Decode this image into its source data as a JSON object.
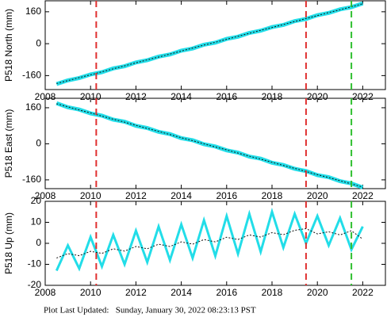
{
  "chart_data": [
    {
      "type": "line",
      "ylabel": "P518 North (mm)",
      "x": [
        2008.5,
        2009,
        2009.5,
        2010,
        2010.5,
        2011,
        2011.5,
        2012,
        2012.5,
        2013,
        2013.5,
        2014,
        2014.5,
        2015,
        2015.5,
        2016,
        2016.5,
        2017,
        2017.5,
        2018,
        2018.5,
        2019,
        2019.5,
        2020,
        2020.5,
        2021,
        2021.5,
        2022
      ],
      "series": [
        {
          "color": "#22dde8",
          "width": 5,
          "values": [
            -202,
            -184,
            -172,
            -154,
            -143,
            -124,
            -113,
            -94,
            -83,
            -65,
            -54,
            -35,
            -24,
            -5,
            5,
            24,
            35,
            54,
            65,
            83,
            94,
            113,
            124,
            143,
            154,
            172,
            183,
            202
          ]
        },
        {
          "color": "#111111",
          "width": 1,
          "dash": true,
          "values": [
            -200,
            -185,
            -170,
            -156,
            -141,
            -126,
            -111,
            -96,
            -81,
            -67,
            -52,
            -37,
            -22,
            -7,
            7,
            22,
            37,
            52,
            67,
            81,
            96,
            111,
            126,
            141,
            156,
            170,
            185,
            200
          ]
        }
      ],
      "vlines": [
        {
          "x": 2010.25,
          "color": "#e03030"
        },
        {
          "x": 2019.5,
          "color": "#e03030"
        },
        {
          "x": 2021.5,
          "color": "#30c030"
        }
      ],
      "xlim": [
        2008,
        2023
      ],
      "xticks": [
        2008,
        2010,
        2012,
        2014,
        2016,
        2018,
        2020,
        2022
      ],
      "ylim": [
        -230,
        215
      ],
      "yticks": [
        -160,
        0,
        160
      ]
    },
    {
      "type": "line",
      "ylabel": "P518 East (mm)",
      "x": [
        2008.5,
        2009,
        2009.5,
        2010,
        2010.5,
        2011,
        2011.5,
        2012,
        2012.5,
        2013,
        2013.5,
        2014,
        2014.5,
        2015,
        2015.5,
        2016,
        2016.5,
        2017,
        2017.5,
        2018,
        2018.5,
        2019,
        2019.5,
        2020,
        2020.5,
        2021,
        2021.5,
        2022
      ],
      "series": [
        {
          "color": "#22dde8",
          "width": 5,
          "values": [
            180,
            162,
            152,
            135,
            125,
            107,
            98,
            80,
            70,
            53,
            43,
            25,
            16,
            -2,
            -12,
            -29,
            -39,
            -57,
            -66,
            -84,
            -94,
            -111,
            -121,
            -139,
            -148,
            -166,
            -176,
            -194
          ]
        },
        {
          "color": "#111111",
          "width": 1,
          "dash": true,
          "values": [
            178,
            164,
            150,
            137,
            123,
            109,
            96,
            82,
            68,
            55,
            41,
            27,
            14,
            0,
            -14,
            -27,
            -41,
            -55,
            -68,
            -82,
            -96,
            -109,
            -123,
            -137,
            -150,
            -164,
            -178,
            -192
          ]
        }
      ],
      "vlines": [
        {
          "x": 2010.25,
          "color": "#e03030"
        },
        {
          "x": 2019.5,
          "color": "#e03030"
        },
        {
          "x": 2021.5,
          "color": "#30c030"
        }
      ],
      "xlim": [
        2008,
        2023
      ],
      "xticks": [
        2008,
        2010,
        2012,
        2014,
        2016,
        2018,
        2020,
        2022
      ],
      "ylim": [
        -199,
        202
      ],
      "yticks": [
        -160,
        0,
        160
      ]
    },
    {
      "type": "line",
      "ylabel": "P518 Up (mm)",
      "x": [
        2008.5,
        2009,
        2009.5,
        2010,
        2010.5,
        2011,
        2011.5,
        2012,
        2012.5,
        2013,
        2013.5,
        2014,
        2014.5,
        2015,
        2015.5,
        2016,
        2016.5,
        2017,
        2017.5,
        2018,
        2018.5,
        2019,
        2019.5,
        2020,
        2020.5,
        2021,
        2021.5,
        2022
      ],
      "series": [
        {
          "color": "#22dde8",
          "width": 3,
          "values": [
            -13,
            -1,
            -12,
            3,
            -11,
            4,
            -10,
            6,
            -9,
            8,
            -8,
            9,
            -7,
            11,
            -6,
            13,
            -5,
            14,
            -4,
            15,
            -2,
            14,
            0,
            13,
            -1,
            12,
            -3,
            8
          ]
        },
        {
          "color": "#111111",
          "width": 1,
          "dash": true,
          "values": [
            -7,
            -4.9,
            -5.9,
            -3.8,
            -4.8,
            -2.6,
            -3.7,
            -1.5,
            -2.6,
            -0.4,
            -1.5,
            0.7,
            -0.4,
            1.8,
            0.7,
            2.9,
            1.8,
            4,
            3,
            5.1,
            4.1,
            6.2,
            7,
            4.5,
            5.5,
            4,
            6,
            2
          ]
        }
      ],
      "vlines": [
        {
          "x": 2010.25,
          "color": "#e03030"
        },
        {
          "x": 2019.5,
          "color": "#e03030"
        },
        {
          "x": 2021.5,
          "color": "#30c030"
        }
      ],
      "xlim": [
        2008,
        2023
      ],
      "xticks": [
        2008,
        2010,
        2012,
        2014,
        2016,
        2018,
        2020,
        2022
      ],
      "ylim": [
        -20,
        20
      ],
      "yticks": [
        -20,
        -10,
        0,
        10,
        20
      ]
    }
  ],
  "footer": "Plot Last Updated:   Sunday, January 30, 2022 08:23:13 PST"
}
